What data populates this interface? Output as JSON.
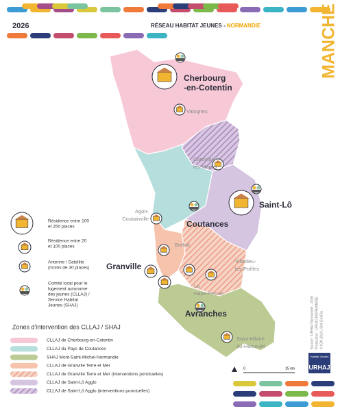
{
  "header": {
    "year": "2026",
    "title": "RÉSEAU HABITAT JEUNES - ",
    "region": "NORMANDIE",
    "department": "MANCHE"
  },
  "places": [
    {
      "lines": [
        "Cherbourg",
        "-en-Cotentin"
      ]
    },
    {
      "lines": [
        "Valognes"
      ]
    },
    {
      "lines": [
        "Carentan-",
        "les-Marais"
      ]
    },
    {
      "lines": [
        "Saint-Lô"
      ]
    },
    {
      "lines": [
        "Agon-",
        "Coutainville"
      ]
    },
    {
      "lines": [
        "Coutances"
      ]
    },
    {
      "lines": [
        "Bréhal"
      ]
    },
    {
      "lines": [
        "Granville"
      ]
    },
    {
      "lines": [
        "Villedieu-",
        "les-Poêles"
      ]
    },
    {
      "lines": [
        "La",
        "Haye-Pesnel"
      ]
    },
    {
      "lines": [
        "Avranches"
      ]
    },
    {
      "lines": [
        "Saint-Hilaire",
        "du-Harcouët"
      ]
    }
  ],
  "symbol_legend": [
    {
      "lines": [
        "Résidence entre 100",
        "et 250 places"
      ]
    },
    {
      "lines": [
        "Résidence entre 20",
        "et 100 places"
      ]
    },
    {
      "lines": [
        "Antenne / Satellite",
        "(moins de 30 places)"
      ]
    },
    {
      "lines": [
        "Comité local pour le",
        "logement autonome",
        "des jeunes (CLLAJ) /",
        "Service Habitat",
        "Jeunes (SHAJ)"
      ]
    }
  ],
  "zone_legend": {
    "title": "Zones d'intervention des CLLAJ / SHAJ",
    "items": [
      "CLLAJ de Cherbourg-en-Cotentin",
      "CLLAJ du Pays de Coutances",
      "SHAJ Mont-Saint-Michel-Normandie",
      "CLLAJ de Granville Terre et Mer",
      "CLLAJ de Granville Terre et Mer (interventions ponctuelles)",
      "CLLAJ de Saint-Lô Agglo",
      "CLLAJ de Saint-Lô Agglo (interventions ponctuelles)"
    ]
  },
  "credits": {
    "source": [
      "Source : URHAJ Normandie - 2026",
      "Production : URHAJ NORMANDIE",
      "© IGN 2024, IGN GéoFla"
    ],
    "logo_sub": "Habitat Jeunes",
    "logo": "URHAJ"
  },
  "scale": {
    "start": "0",
    "end": "25 km"
  }
}
